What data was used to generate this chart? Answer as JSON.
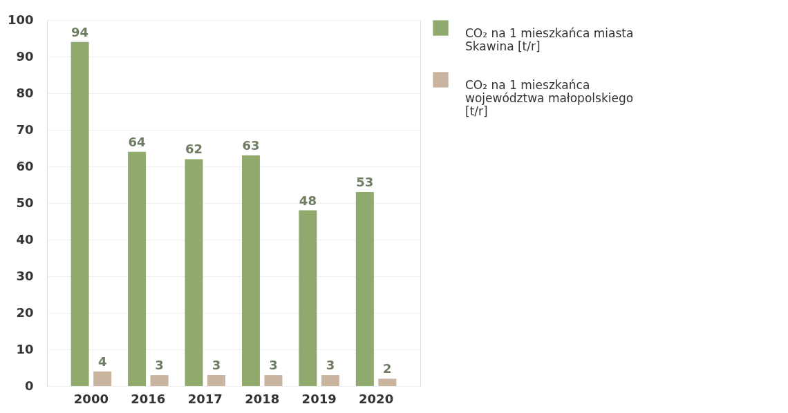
{
  "chart_data": {
    "type": "bar",
    "categories": [
      "2000",
      "2016",
      "2017",
      "2018",
      "2019",
      "2020"
    ],
    "series": [
      {
        "name": "CO₂ na 1 mieszkańca miasta Skawina [t/r]",
        "color": "#8faa6c",
        "values": [
          94,
          64,
          62,
          63,
          48,
          53
        ]
      },
      {
        "name": "CO₂ na 1 mieszkańca województwa małopolskiego [t/r]",
        "color": "#c9b4a0",
        "values": [
          4,
          3,
          3,
          3,
          3,
          2
        ]
      }
    ],
    "ylim": [
      0,
      100
    ],
    "yticks": [
      0,
      10,
      20,
      30,
      40,
      50,
      60,
      70,
      80,
      90,
      100
    ],
    "grid": "y",
    "legend": "right",
    "data_labels": true
  }
}
